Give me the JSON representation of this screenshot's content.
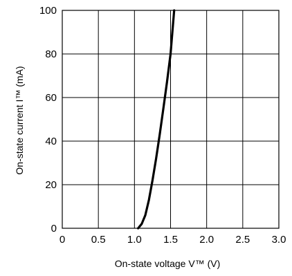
{
  "chart_data": {
    "type": "line",
    "title": "",
    "xlabel": "On-state voltage V™ (V)",
    "ylabel": "On-state current I™ (mA)",
    "xlim": [
      0,
      3.0
    ],
    "ylim": [
      0,
      100
    ],
    "grid": true,
    "x_ticks": [
      0,
      0.5,
      1.0,
      1.5,
      2.0,
      2.5,
      3.0
    ],
    "x_tick_labels": [
      "0",
      "0.5",
      "1.0",
      "1.5",
      "2.0",
      "2.5",
      "3.0"
    ],
    "y_ticks": [
      0,
      20,
      40,
      60,
      80,
      100
    ],
    "y_tick_labels": [
      "0",
      "20",
      "40",
      "60",
      "80",
      "100"
    ],
    "series": [
      {
        "color": "#000000",
        "x": [
          1.05,
          1.1,
          1.15,
          1.2,
          1.25,
          1.3,
          1.35,
          1.4,
          1.45,
          1.5,
          1.55
        ],
        "y": [
          0,
          2,
          6,
          13,
          22,
          32,
          43,
          55,
          67,
          80,
          100
        ]
      }
    ]
  }
}
